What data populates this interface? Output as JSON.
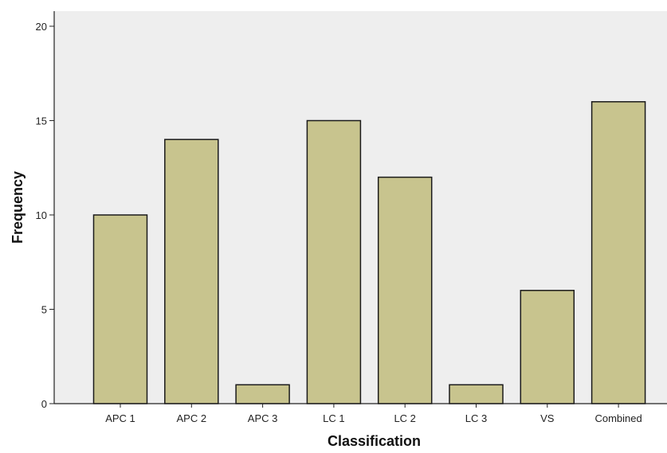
{
  "chart_data": {
    "type": "bar",
    "title": "",
    "xlabel": "Classification",
    "ylabel": "Frequency",
    "categories": [
      "APC 1",
      "APC 2",
      "APC 3",
      "LC 1",
      "LC 2",
      "LC 3",
      "VS",
      "Combined"
    ],
    "values": [
      10,
      14,
      1,
      15,
      12,
      1,
      6,
      16
    ],
    "ylim": [
      0,
      20.8
    ],
    "yticks": [
      0,
      5,
      10,
      15,
      20
    ],
    "grid": false,
    "legend": "none",
    "colors": {
      "plot_background": "#eeeeee",
      "bar_fill": "#c8c48e",
      "bar_stroke": "#1a1a1a",
      "axis": "#222222"
    }
  }
}
